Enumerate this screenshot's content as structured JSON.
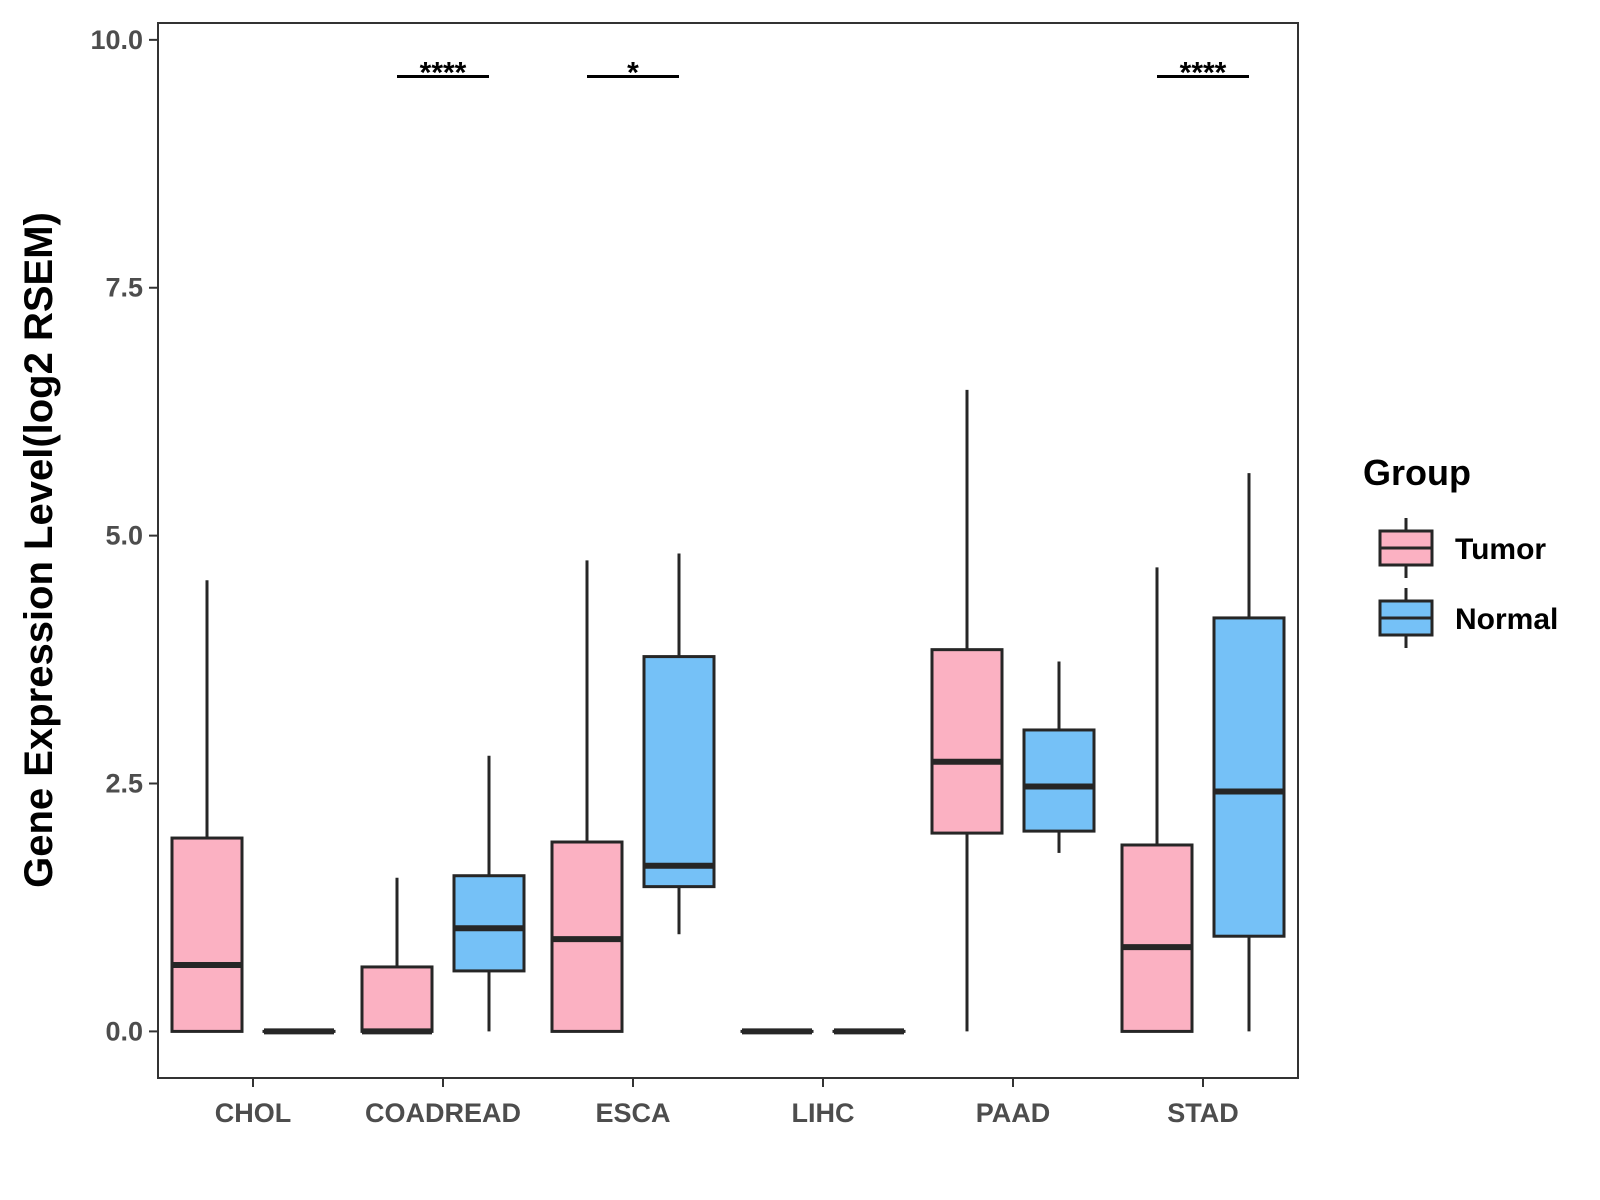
{
  "chart_data": {
    "type": "boxplot",
    "title": "",
    "xlabel": "",
    "ylabel": "Gene Expression Level(log2 RSEM)",
    "ylim": [
      -0.47,
      10.17
    ],
    "yticks": [
      "0.0",
      "2.5",
      "5.0",
      "7.5",
      "10.0"
    ],
    "ytick_values": [
      0,
      2.5,
      5,
      7.5,
      10
    ],
    "grid": false,
    "legend": {
      "title": "Group",
      "position": "right",
      "entries": [
        {
          "name": "Tumor",
          "color": "#FBB1C2"
        },
        {
          "name": "Normal",
          "color": "#75C1F7"
        }
      ]
    },
    "categories": [
      "CHOL",
      "COADREAD",
      "ESCA",
      "LIHC",
      "PAAD",
      "STAD"
    ],
    "series": [
      {
        "name": "Tumor",
        "color": "#FBB1C2",
        "boxes": [
          {
            "category": "CHOL",
            "min": 0,
            "q1": 0,
            "median": 0.67,
            "q3": 1.95,
            "max": 4.55
          },
          {
            "category": "COADREAD",
            "min": 0,
            "q1": 0,
            "median": 0,
            "q3": 0.65,
            "max": 1.55
          },
          {
            "category": "ESCA",
            "min": 0,
            "q1": 0,
            "median": 0.93,
            "q3": 1.91,
            "max": 4.75
          },
          {
            "category": "LIHC",
            "min": 0,
            "q1": 0,
            "median": 0,
            "q3": 0,
            "max": 0
          },
          {
            "category": "PAAD",
            "min": 0,
            "q1": 2.0,
            "median": 2.72,
            "q3": 3.85,
            "max": 6.47
          },
          {
            "category": "STAD",
            "min": 0,
            "q1": 0,
            "median": 0.85,
            "q3": 1.88,
            "max": 4.68
          }
        ]
      },
      {
        "name": "Normal",
        "color": "#75C1F7",
        "boxes": [
          {
            "category": "CHOL",
            "min": 0,
            "q1": 0,
            "median": 0,
            "q3": 0,
            "max": 0
          },
          {
            "category": "COADREAD",
            "min": 0,
            "q1": 0.61,
            "median": 1.04,
            "q3": 1.57,
            "max": 2.78
          },
          {
            "category": "ESCA",
            "min": 0.98,
            "q1": 1.46,
            "median": 1.67,
            "q3": 3.78,
            "max": 4.82
          },
          {
            "category": "LIHC",
            "min": 0,
            "q1": 0,
            "median": 0,
            "q3": 0,
            "max": 0
          },
          {
            "category": "PAAD",
            "min": 1.8,
            "q1": 2.02,
            "median": 2.47,
            "q3": 3.04,
            "max": 3.73
          },
          {
            "category": "STAD",
            "min": 0,
            "q1": 0.96,
            "median": 2.42,
            "q3": 4.17,
            "max": 5.63
          }
        ]
      }
    ],
    "significance": [
      {
        "category": "COADREAD",
        "label": "****",
        "y": 9.63
      },
      {
        "category": "ESCA",
        "label": "*",
        "y": 9.63
      },
      {
        "category": "STAD",
        "label": "****",
        "y": 9.63
      }
    ]
  }
}
